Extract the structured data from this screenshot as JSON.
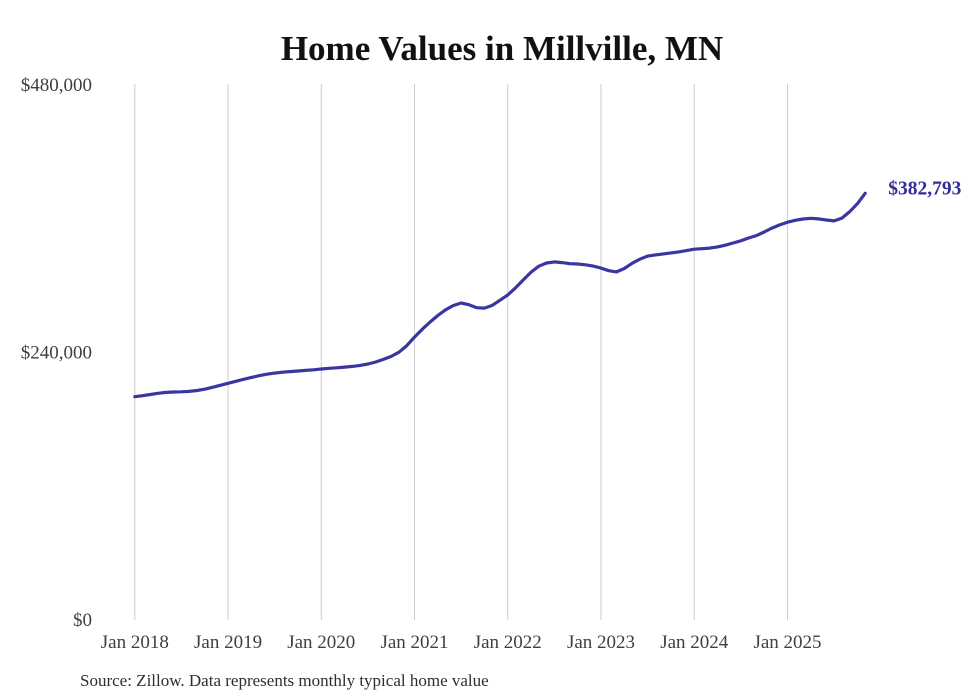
{
  "page": {
    "background": "#ffffff"
  },
  "chart_data": {
    "type": "line",
    "title": "Home Values in Millville, MN",
    "series_name": "Typical home value",
    "x_start": "2018-01",
    "x_end": "2025-11",
    "frequency": "monthly",
    "values": [
      200300,
      201200,
      202300,
      203400,
      204200,
      204600,
      204700,
      205100,
      205900,
      207100,
      208800,
      210600,
      212400,
      214200,
      216000,
      217700,
      219200,
      220500,
      221500,
      222300,
      222900,
      223400,
      223900,
      224500,
      225200,
      225800,
      226300,
      226900,
      227500,
      228400,
      229700,
      231500,
      233800,
      236500,
      240300,
      246200,
      253800,
      260900,
      267400,
      273200,
      278300,
      282200,
      284400,
      282900,
      280200,
      279800,
      282300,
      286900,
      291700,
      298000,
      305100,
      312100,
      317400,
      320300,
      321300,
      320700,
      319700,
      319400,
      318700,
      317500,
      315700,
      313400,
      312300,
      315400,
      320000,
      323700,
      326500,
      327600,
      328500,
      329400,
      330300,
      331400,
      332700,
      333100,
      333700,
      334700,
      336300,
      338200,
      340200,
      342700,
      344900,
      348100,
      351600,
      354500,
      356900,
      358600,
      359800,
      360400,
      359900,
      358900,
      358100,
      360600,
      366200,
      373500,
      382793
    ],
    "end_label": "$382,793",
    "end_value": 382793,
    "x_ticks": [
      {
        "label": "Jan 2018",
        "month_index": 0
      },
      {
        "label": "Jan 2019",
        "month_index": 12
      },
      {
        "label": "Jan 2020",
        "month_index": 24
      },
      {
        "label": "Jan 2021",
        "month_index": 36
      },
      {
        "label": "Jan 2022",
        "month_index": 48
      },
      {
        "label": "Jan 2023",
        "month_index": 60
      },
      {
        "label": "Jan 2024",
        "month_index": 72
      },
      {
        "label": "Jan 2025",
        "month_index": 84
      }
    ],
    "y_ticks": [
      {
        "label": "$0",
        "value": 0
      },
      {
        "label": "$240,000",
        "value": 240000
      },
      {
        "label": "$480,000",
        "value": 480000
      }
    ],
    "ylim": [
      0,
      480000
    ],
    "grid": "vertical-yearly-only",
    "legend": "none",
    "colors": {
      "line": "#3b35a2",
      "end_label": "#332d9a",
      "grid": "#cccccc",
      "axis_text": "#3f3f3f",
      "title_text": "#111111",
      "source_text": "#2e2e2e"
    },
    "source_note": "Source: Zillow. Data represents monthly typical home value"
  }
}
